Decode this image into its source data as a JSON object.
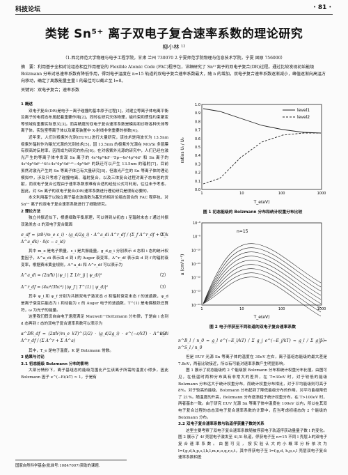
{
  "header": {
    "journal": "科技论坛",
    "page": "· 81 ·"
  },
  "title": "类铑 Sn⁵⁺ 离子双电子复合速率系数的理论研究",
  "author": "柳小林 ¹²",
  "affiliation": "（1.西北师范大学物理与电子工程学院，甘肃 兰州 730070  2.宁夏师范学院物理与信息技术学院，宁夏 固原 756000）",
  "abstract": "摘　要：利用基于全相对论组态相互作用理论的 Flexible Atomic Code (FAC)程序包，详细研究了 Sn⁵⁺离子的双电子复合(DR)过程。通过比较发现初始能级 Bolzmann 分布对总速率系数有降低作用，得到电子温度在 n=15 轨道的双电子复合速率系数最大，随 n 的增加，双电子复合速率系数逐渐减小，峰值逐渐向高温方向移动，确定了离散能量主量 l 的最佳可以截止至 l=8。",
  "keywords": "关键词：双电子复合；速率系数",
  "left": {
    "s1": "1 概述",
    "p1": "双电子复合(DR)是电子－离子碰撞的基本原子过程[1]，对建立等离子体电离平衡及离子的电荷态布居起着重要作用[2]，同时在研究天体物理，磁约束和惯性约束聚变等领域有重要实际意义[3]。而高精度的双电子复合速率系数是模拟和诊断各种天体等离子体，实验室等离子体以及聚变装置中 X-射线非常重要的参数[4]。",
    "p2": "近年来，人们对极紫外光刻(EUVL)进行大量研究，该技术是用波长为 13.5nm 极紫外辐射作为曝光光源的光刻技术[5]，因 13.5nm 的极紫外光源在 MO/Si 多层膜有很高的反射率，因而成为研究的热点[6]。在对极紫外光源的研究中，人们已经在激光产生的等离子体中发现 Sn 离子的 4s²4p⁶4dⁿ⁻¹5p−4s²4p⁶4dⁿ 和 Sn 离子的 4s²4p⁶4dⁿ⁻¹4f+4s²4p⁵4dⁿ⁺¹−4p⁶4dⁿ 的跃迁可以产生 13.5nm 的辐射[7]，目前虽然对激光产生的 Sn 等离子体已有大量研究[8]，但激光产生的 Sn 等离子体的理论模拟中，涉及只考虑了碰撞电离、辐射复合，以及三体复合过程对离子态布居的贡献，而双电子复合过程由于速率系数很难有合适的经验公式可利用，往往未予考虑。因此，对 Sn 离子的双电子复合(DR)速率系数进行理论研究是很有必要的。",
    "p3": "本文利用基于以独立离子基态波函数为基矢的相对论组态混合的 FAC 程序包，对 Sn⁵⁺ 离子的双电子复合速率系数进行了细致研究。",
    "s2": "2 理论方法",
    "p4": "独立共振近似下，根据细致平衡原理，可以得到从初态 i 至辐射末态 f 通过共振双激发态 d 的双电子复合截面",
    "eq1": "σ_df = (πħ²/m_e ε_i) · (g_d/2g_i) · A^a_di A^r_df / (Σ_f A^r_df + Σ_k A^a_dk) · δ(ε − ε_id)",
    "eq1n": "（1）",
    "p5": "其中 m_e 是电子质量，ε_i 是共振能量，g_d,g_i 分别表示 d 态和 i 态的统计权重因子，A^a_di 表示由 d 到 i 的 Auger 衰变率，A^r_df 表示由 d 到 f 的辐射衰变率，根据费米黄金规则，A^a_di 和 A^r_df 可以表示为",
    "eq2": "A^a_di = (2π/ħ) |⟨ψ_i | Σ 1/r_ij | ψ_d⟩|²",
    "eq2n": "（2）",
    "eq3": "A^r_df = (4ω³/3ħc³) |⟨ψ_f | T^(1) | ψ_d⟩|²",
    "eq3n": "（3）",
    "p6": "其中 ψ_i 和 ψ_f 分别为共振双电子激发态 d 和辐射衰变末态 f 的波函数，ψ_d 是离子衰变后能态为 i 和动能为 ε 的 Auger 电子的波函数，T^(1) 是电偶极跃迁算符，ω 为光子的能量。",
    "p7": "这里我们假设自由电子速度满足 Maxwell－Boltzmann 分布律，于是由 i 态到 d 态再到 f 态的双电子复合速率系数可以表示为",
    "eq4": "α^DR_df = (2πħ²/m_e kT)^(3/2) · (g_d/2g_i) · e^(−ε/kT) · A^a_di A^r_df / (Σ A^r + Σ A^a)",
    "eq4n": "（4）",
    "p8": "其中，T_e 是电子温度，K 是 Bolzmann 常数。",
    "s3": "3 结果与讨论",
    "s31": "3.1 初态能级 Bolzmann 分布的影响",
    "p9": "大部分情形下，离子基组态的能级范围比产生该离子所需的温度小得多，因此 Bolzmann 因子 e^(−Ei/kT) ≈ 1，于是有"
  },
  "fig1": {
    "caption": "图 1 初态能级的 Bolzmann 分布和统计权重分布比较",
    "ylabel": "ratios Uᵢ / U₀",
    "xlabel": "T_e(eV)",
    "legend": [
      "level1",
      "level2"
    ],
    "xticks": [
      "1",
      "10",
      "100",
      "1000"
    ],
    "yticks": [
      "1.0",
      "0.9",
      "0.8",
      "0.7",
      "0.6",
      "0.5",
      "0.4",
      "0.3",
      "0.2",
      "0.1",
      "0.0"
    ]
  },
  "fig2": {
    "caption": "图 2 电子俘获至不同轨道的双电子复合速率系数",
    "ylabel": "α (cm³s⁻¹)",
    "xlabel": "T_e(eV)",
    "annotation": "n=15",
    "xticks": [
      "1",
      "10",
      "100",
      "1000"
    ],
    "yticks": [
      "10⁻⁸",
      "10⁻⁹",
      "10⁻¹⁰",
      "10⁻¹¹",
      "10⁻¹²",
      "10⁻¹³",
      "10⁻¹⁴"
    ]
  },
  "right": {
    "eq5": "n^B_l / n_0 = g_l e^(−E_l/kT) / Σ g_j e^(−E_j/kT) ≈ g_l / Σ g_j = n^S_l / n_0",
    "eq5n": "（5）",
    "p10": "但是 EUV 光源 Sn 等离子体的温度在 30eV 左右，离子基组态能级的最大差是 7.8eV，两者比较接近，所以有可能对速率系数产生明显影响。",
    "p11": "图 1 展示了初态能级的 2 个能级按 Bolzmann 分布和统计权重分布比值。由图可见，在低温时两种分布具有非常大的差异，在 T=30eV 时，对于较低的能级 Bolzmann 分布远大于统计权重分布，而统计权重分布相比，对于平均能级则可高于 8%。对于较高的能级，Bolzmann 分布起到了降低能级分布的作用，对平均能级降低了 21%。随温度的升高，Bolzmann 分布逐渐趋于统计权重分布。在 T>100eV 时，两者基本一致。由于研究 EUV 光源 Sn 等离子体中温度在 100eV 以内，所以在其双电子复合过程的态态双电子复合速率系数的计算中，应当考虑初组态的 2 个能级的 Bolzmann 分布。",
    "s32": "3.2 双电子复合速率系数与轨道俘获量子数的关系",
    "p12": "这里主要考察了双电子复合速率系数随被俘获电子轨道俘获动量量子数 l 的变化。图 2 展示了 4f 壳层电子激发至 4l,5l 轨道，俘获电子至 n=15 不同 l 壳层上的双电子复合速率系数。由图可见，按实验认大的小概率分析依次为 l=f,g,d,h,p,s,l,k,l,m,n,o,q,r,s,t，其中俘获电子至 l=f,g,d, h,p,s,l 壳层双电子复合速率系数相差"
  },
  "footnote": "国家自然科学基金(批准号:10847007)资助的课题."
}
